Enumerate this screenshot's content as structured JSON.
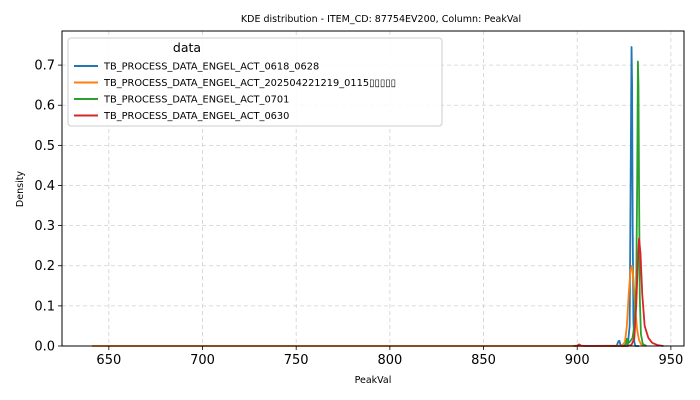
{
  "chart_data": {
    "type": "line",
    "title": "KDE distribution - ITEM_CD: 87754EV200, Column: PeakVal",
    "xlabel": "PeakVal",
    "ylabel": "Density",
    "xlim": [
      625,
      957
    ],
    "ylim": [
      0,
      0.785
    ],
    "xticks": [
      650,
      700,
      750,
      800,
      850,
      900,
      950
    ],
    "yticks": [
      0.0,
      0.1,
      0.2,
      0.3,
      0.4,
      0.5,
      0.6,
      0.7
    ],
    "grid": true,
    "legend": {
      "title": "data",
      "position": "top-left"
    },
    "series": [
      {
        "name": "TB_PROCESS_DATA_ENGEL_ACT_0618_0628",
        "color": "#1f77b4",
        "x": [
          918,
          921,
          922,
          922.5,
          923,
          924,
          926,
          927,
          928,
          928.5,
          929,
          929.3,
          929.6,
          930,
          930.5,
          931,
          933
        ],
        "y": [
          0,
          0,
          0.012,
          0.013,
          0.004,
          0,
          0,
          0.003,
          0.05,
          0.4,
          0.745,
          0.65,
          0.3,
          0.06,
          0.01,
          0,
          0
        ]
      },
      {
        "name": "TB_PROCESS_DATA_ENGEL_ACT_202504221219_0115▯▯▯▯▯",
        "color": "#ff7f0e",
        "x": [
          641,
          700,
          800,
          900,
          924,
          925.5,
          926.5,
          927.5,
          928.5,
          929.2,
          930,
          931,
          932,
          933,
          934,
          935,
          936
        ],
        "y": [
          0,
          0,
          0,
          0,
          0.001,
          0.01,
          0.05,
          0.13,
          0.19,
          0.2,
          0.17,
          0.09,
          0.04,
          0.015,
          0.005,
          0.002,
          0
        ]
      },
      {
        "name": "TB_PROCESS_DATA_ENGEL_ACT_0701",
        "color": "#2ca02c",
        "x": [
          923,
          925,
          926,
          926.5,
          927,
          928,
          929.5,
          930.5,
          931.5,
          932,
          932.4,
          932.7,
          933,
          933.4,
          934,
          935,
          937
        ],
        "y": [
          0,
          0,
          0.005,
          0.018,
          0.006,
          0.01,
          0.02,
          0.05,
          0.15,
          0.4,
          0.709,
          0.65,
          0.4,
          0.12,
          0.03,
          0.005,
          0
        ]
      },
      {
        "name": "TB_PROCESS_DATA_ENGEL_ACT_0630",
        "color": "#d62728",
        "x": [
          898,
          900,
          901,
          902,
          904,
          927,
          929,
          930.5,
          931.5,
          932.3,
          933,
          933.8,
          934.7,
          936,
          938,
          940,
          943,
          946
        ],
        "y": [
          0,
          0.001,
          0.004,
          0.001,
          0,
          0,
          0.003,
          0.02,
          0.1,
          0.2,
          0.268,
          0.23,
          0.13,
          0.05,
          0.02,
          0.008,
          0.002,
          0
        ]
      }
    ]
  }
}
